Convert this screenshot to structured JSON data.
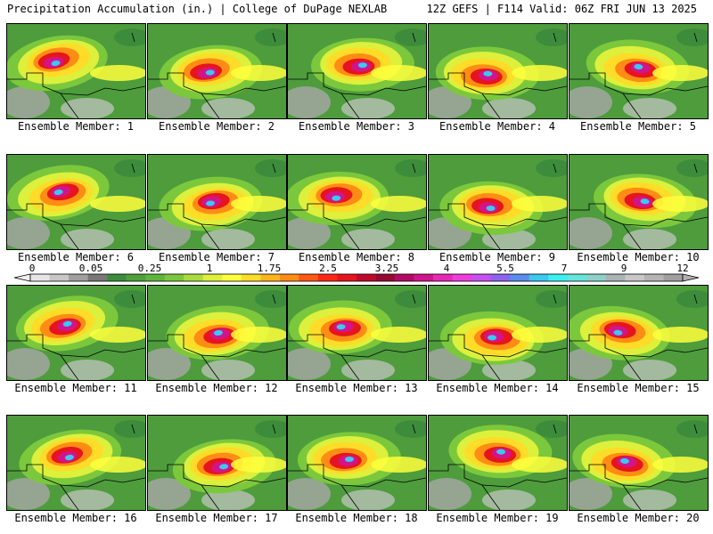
{
  "header": {
    "left": "Precipitation Accumulation (in.) | College of DuPage NEXLAB",
    "right": "12Z GEFS | F114 Valid: 06Z FRI JUN 13 2025"
  },
  "members": [
    "Ensemble Member: 1",
    "Ensemble Member: 2",
    "Ensemble Member: 3",
    "Ensemble Member: 4",
    "Ensemble Member: 5",
    "Ensemble Member: 6",
    "Ensemble Member: 7",
    "Ensemble Member: 8",
    "Ensemble Member: 9",
    "Ensemble Member: 10",
    "Ensemble Member: 11",
    "Ensemble Member: 12",
    "Ensemble Member: 13",
    "Ensemble Member: 14",
    "Ensemble Member: 15",
    "Ensemble Member: 16",
    "Ensemble Member: 17",
    "Ensemble Member: 18",
    "Ensemble Member: 19",
    "Ensemble Member: 20"
  ],
  "colorbar": {
    "labels": [
      "0",
      "0.05",
      "0.25",
      "1",
      "1.75",
      "2.5",
      "3.25",
      "4",
      "5.5",
      "7",
      "9",
      "12"
    ],
    "colors": [
      "#e6e6e6",
      "#c8c8c8",
      "#a0a0a0",
      "#787878",
      "#3c8c3c",
      "#4ea03a",
      "#5fb43c",
      "#7cc83c",
      "#aadc3c",
      "#dcf03c",
      "#ffff3c",
      "#ffdc28",
      "#ffb41e",
      "#ff8c14",
      "#ff5a14",
      "#ff2814",
      "#e6141e",
      "#be0a28",
      "#960a32",
      "#b40a64",
      "#d2148c",
      "#e628b4",
      "#f03cdc",
      "#c850f0",
      "#8c64f0",
      "#5a8cf0",
      "#3cc8f0",
      "#3cf0f0",
      "#64e6dc",
      "#8cd2c8",
      "#aab4b4",
      "#c8c8c8",
      "#b4b4b4",
      "#a0a0a0"
    ]
  }
}
